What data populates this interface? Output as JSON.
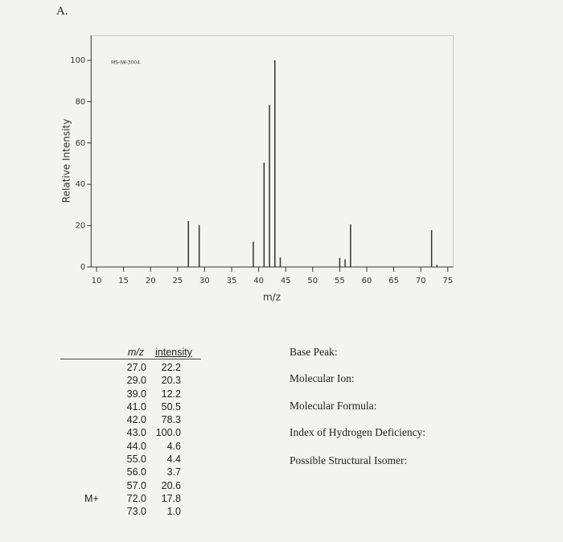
{
  "heading": "A.",
  "chart_data": {
    "type": "bar",
    "title": "MS-IW-3004",
    "x_label": "m/z",
    "y_label": "Relative Intensity",
    "x": [
      27,
      29,
      39,
      41,
      42,
      43,
      44,
      55,
      56,
      57,
      72,
      73
    ],
    "values": [
      22.2,
      20.3,
      12.2,
      50.5,
      78.3,
      100.0,
      4.6,
      4.4,
      3.7,
      20.6,
      17.8,
      1.0
    ],
    "color": "#333333",
    "xlim": [
      9,
      76
    ],
    "ylim": [
      0,
      112
    ],
    "xticks": [
      10,
      15,
      20,
      25,
      30,
      35,
      40,
      45,
      50,
      55,
      60,
      65,
      70,
      75
    ],
    "yticks": [
      0,
      20,
      40,
      60,
      80,
      100
    ]
  },
  "table": {
    "header": [
      "m/z",
      "intensity"
    ],
    "rows": [
      {
        "mz": "27.0",
        "intensity": "22.2"
      },
      {
        "mz": "29.0",
        "intensity": "20.3"
      },
      {
        "mz": "39.0",
        "intensity": "12.2"
      },
      {
        "mz": "41.0",
        "intensity": "50.5"
      },
      {
        "mz": "42.0",
        "intensity": "78.3"
      },
      {
        "mz": "43.0",
        "intensity": "100.0"
      },
      {
        "mz": "44.0",
        "intensity": "4.6"
      },
      {
        "mz": "55.0",
        "intensity": "4.4"
      },
      {
        "mz": "56.0",
        "intensity": "3.7"
      },
      {
        "mz": "57.0",
        "intensity": "20.6"
      },
      {
        "mz": "72.0",
        "intensity": "17.8",
        "note": "M+"
      },
      {
        "mz": "73.0",
        "intensity": "1.0"
      }
    ]
  },
  "questions": [
    "Base Peak:",
    "Molecular Ion:",
    "Molecular Formula:",
    "Index of Hydrogen Deficiency:",
    "Possible Structural Isomer:"
  ]
}
